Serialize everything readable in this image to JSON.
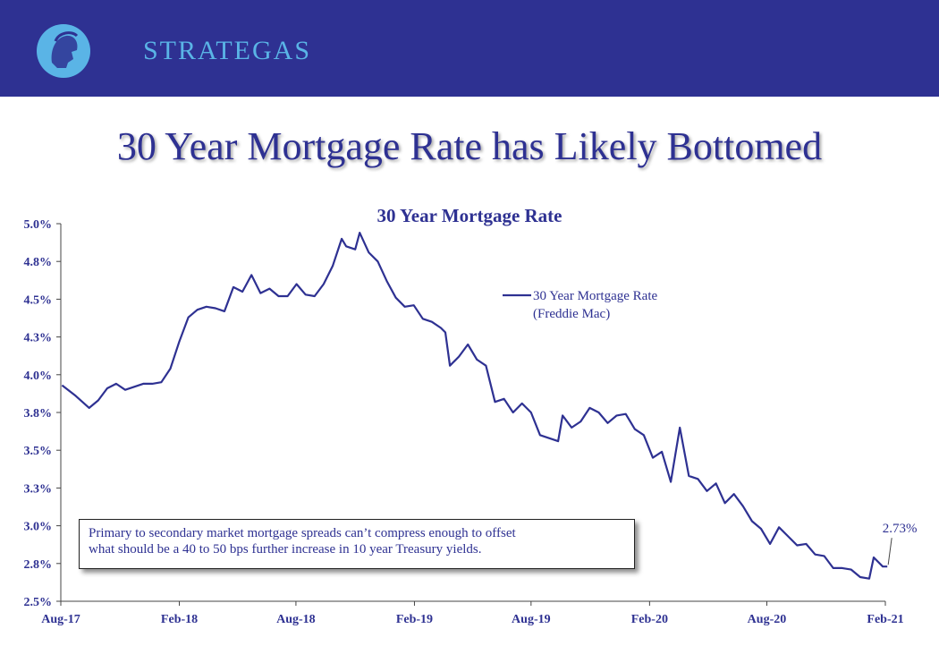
{
  "brand": {
    "name": "STRATEGAS"
  },
  "headline": "30 Year Mortgage Rate has Likely Bottomed",
  "note": {
    "line1": "Primary to secondary market mortgage spreads can’t compress enough to offset",
    "line2": "what should be a 40 to 50 bps further increase in 10 year Treasury yields."
  },
  "colors": {
    "banner": "#2e3192",
    "brand_text": "#5ab4e6",
    "line": "#2e3192"
  },
  "chart_data": {
    "type": "line",
    "title": "30 Year Mortgage Rate",
    "xlabel": "",
    "ylabel": "",
    "ylim": [
      2.5,
      5.0
    ],
    "y_ticks": [
      "2.5%",
      "2.8%",
      "3.0%",
      "3.3%",
      "3.5%",
      "3.8%",
      "4.0%",
      "4.3%",
      "4.5%",
      "4.8%",
      "5.0%"
    ],
    "x_ticks": [
      "Aug-17",
      "Feb-18",
      "Aug-18",
      "Feb-19",
      "Aug-19",
      "Feb-20",
      "Aug-20",
      "Feb-21"
    ],
    "x_range": [
      "2017-08-03",
      "2021-02-04"
    ],
    "grid": false,
    "legend_position": "upper-right",
    "series": [
      {
        "name": "30 Year Mortgage Rate\n(Freddie Mac)",
        "points": [
          [
            "2017-08-03",
            3.93
          ],
          [
            "2017-08-24",
            3.86
          ],
          [
            "2017-09-14",
            3.78
          ],
          [
            "2017-09-28",
            3.83
          ],
          [
            "2017-10-12",
            3.91
          ],
          [
            "2017-10-26",
            3.94
          ],
          [
            "2017-11-09",
            3.9
          ],
          [
            "2017-11-23",
            3.92
          ],
          [
            "2017-12-07",
            3.94
          ],
          [
            "2017-12-21",
            3.94
          ],
          [
            "2018-01-04",
            3.95
          ],
          [
            "2018-01-18",
            4.04
          ],
          [
            "2018-02-01",
            4.22
          ],
          [
            "2018-02-15",
            4.38
          ],
          [
            "2018-03-01",
            4.43
          ],
          [
            "2018-03-15",
            4.45
          ],
          [
            "2018-03-29",
            4.44
          ],
          [
            "2018-04-12",
            4.42
          ],
          [
            "2018-04-26",
            4.58
          ],
          [
            "2018-05-10",
            4.55
          ],
          [
            "2018-05-24",
            4.66
          ],
          [
            "2018-06-07",
            4.54
          ],
          [
            "2018-06-21",
            4.57
          ],
          [
            "2018-07-05",
            4.52
          ],
          [
            "2018-07-19",
            4.52
          ],
          [
            "2018-08-02",
            4.6
          ],
          [
            "2018-08-16",
            4.53
          ],
          [
            "2018-08-30",
            4.52
          ],
          [
            "2018-09-13",
            4.6
          ],
          [
            "2018-09-27",
            4.72
          ],
          [
            "2018-10-11",
            4.9
          ],
          [
            "2018-10-18",
            4.85
          ],
          [
            "2018-11-01",
            4.83
          ],
          [
            "2018-11-08",
            4.94
          ],
          [
            "2018-11-22",
            4.81
          ],
          [
            "2018-12-06",
            4.75
          ],
          [
            "2018-12-20",
            4.62
          ],
          [
            "2019-01-03",
            4.51
          ],
          [
            "2019-01-17",
            4.45
          ],
          [
            "2019-01-31",
            4.46
          ],
          [
            "2019-02-14",
            4.37
          ],
          [
            "2019-02-28",
            4.35
          ],
          [
            "2019-03-14",
            4.31
          ],
          [
            "2019-03-21",
            4.28
          ],
          [
            "2019-03-28",
            4.06
          ],
          [
            "2019-04-11",
            4.12
          ],
          [
            "2019-04-25",
            4.2
          ],
          [
            "2019-05-09",
            4.1
          ],
          [
            "2019-05-23",
            4.06
          ],
          [
            "2019-06-06",
            3.82
          ],
          [
            "2019-06-20",
            3.84
          ],
          [
            "2019-07-04",
            3.75
          ],
          [
            "2019-07-18",
            3.81
          ],
          [
            "2019-08-01",
            3.75
          ],
          [
            "2019-08-15",
            3.6
          ],
          [
            "2019-08-29",
            3.58
          ],
          [
            "2019-09-12",
            3.56
          ],
          [
            "2019-09-19",
            3.73
          ],
          [
            "2019-10-03",
            3.65
          ],
          [
            "2019-10-17",
            3.69
          ],
          [
            "2019-10-31",
            3.78
          ],
          [
            "2019-11-14",
            3.75
          ],
          [
            "2019-11-28",
            3.68
          ],
          [
            "2019-12-12",
            3.73
          ],
          [
            "2019-12-26",
            3.74
          ],
          [
            "2020-01-09",
            3.64
          ],
          [
            "2020-01-23",
            3.6
          ],
          [
            "2020-02-06",
            3.45
          ],
          [
            "2020-02-20",
            3.49
          ],
          [
            "2020-03-05",
            3.29
          ],
          [
            "2020-03-19",
            3.65
          ],
          [
            "2020-04-02",
            3.33
          ],
          [
            "2020-04-16",
            3.31
          ],
          [
            "2020-04-30",
            3.23
          ],
          [
            "2020-05-14",
            3.28
          ],
          [
            "2020-05-28",
            3.15
          ],
          [
            "2020-06-11",
            3.21
          ],
          [
            "2020-06-25",
            3.13
          ],
          [
            "2020-07-09",
            3.03
          ],
          [
            "2020-07-23",
            2.98
          ],
          [
            "2020-08-06",
            2.88
          ],
          [
            "2020-08-20",
            2.99
          ],
          [
            "2020-09-03",
            2.93
          ],
          [
            "2020-09-17",
            2.87
          ],
          [
            "2020-10-01",
            2.88
          ],
          [
            "2020-10-15",
            2.81
          ],
          [
            "2020-10-29",
            2.8
          ],
          [
            "2020-11-12",
            2.72
          ],
          [
            "2020-11-26",
            2.72
          ],
          [
            "2020-12-10",
            2.71
          ],
          [
            "2020-12-24",
            2.66
          ],
          [
            "2021-01-07",
            2.65
          ],
          [
            "2021-01-14",
            2.79
          ],
          [
            "2021-01-28",
            2.73
          ],
          [
            "2021-02-04",
            2.73
          ]
        ]
      }
    ],
    "annotations": [
      {
        "text": "2.73%",
        "date": "2021-02-04",
        "value": 2.73
      }
    ]
  }
}
